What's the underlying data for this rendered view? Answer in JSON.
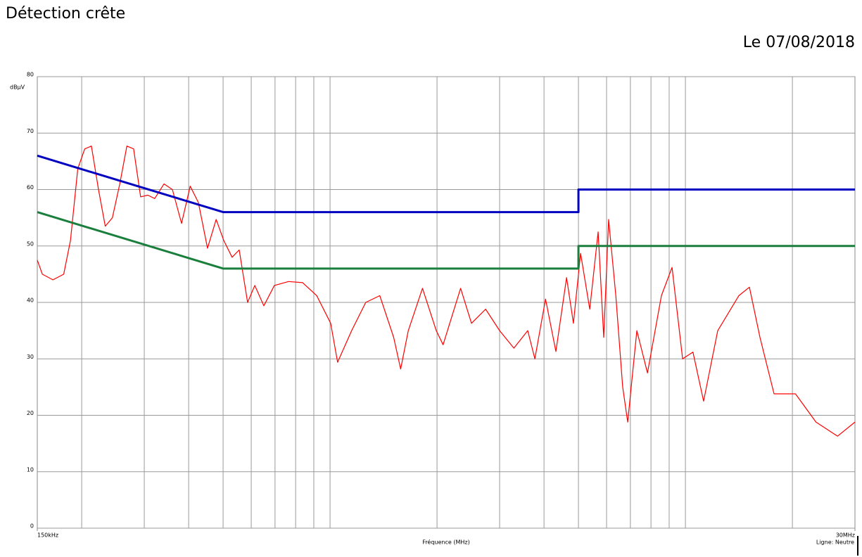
{
  "chart_data": {
    "type": "line",
    "title": "Détection crête",
    "date": "Le 07/08/2018",
    "ylabel": "dBµV",
    "xlabel": "Fréquence (MHz)",
    "note": "Ligne: Neutre",
    "xscale": "log",
    "xlim": [
      0.15,
      30
    ],
    "ylim": [
      0,
      80
    ],
    "xticks": [
      {
        "value": 0.15,
        "label": "150kHz"
      },
      {
        "value": 30,
        "label": "30MHz"
      }
    ],
    "xgrid": [
      0.2,
      0.3,
      0.4,
      0.5,
      0.6,
      0.7,
      0.8,
      0.9,
      1,
      2,
      3,
      4,
      5,
      6,
      7,
      8,
      9,
      10,
      20
    ],
    "yticks": [
      0,
      10,
      20,
      30,
      40,
      50,
      60,
      70,
      80
    ],
    "grid": true,
    "series": [
      {
        "color": "#ff0000",
        "width": 1.2,
        "x": [
          0.15,
          0.155,
          0.166,
          0.178,
          0.186,
          0.195,
          0.204,
          0.213,
          0.223,
          0.233,
          0.244,
          0.256,
          0.268,
          0.28,
          0.293,
          0.307,
          0.321,
          0.341,
          0.36,
          0.382,
          0.404,
          0.426,
          0.452,
          0.478,
          0.502,
          0.53,
          0.555,
          0.586,
          0.614,
          0.651,
          0.697,
          0.764,
          0.837,
          0.917,
          1.004,
          1.05,
          1.15,
          1.26,
          1.38,
          1.51,
          1.58,
          1.66,
          1.82,
          1.99,
          2.08,
          2.33,
          2.5,
          2.74,
          3.0,
          3.29,
          3.6,
          3.77,
          4.04,
          4.32,
          4.63,
          4.84,
          5.07,
          5.38,
          5.68,
          5.89,
          6.08,
          6.37,
          6.66,
          6.88,
          7.3,
          7.82,
          8.56,
          9.17,
          9.82,
          10.5,
          11.25,
          12.33,
          14.14,
          15.14,
          16.21,
          17.76,
          20.4,
          23.3,
          26.8,
          30
        ],
        "values": [
          47.5,
          45,
          44,
          45,
          51,
          63.7,
          67.2,
          67.7,
          60,
          53.5,
          55,
          61,
          67.7,
          67.2,
          58.7,
          59,
          58.4,
          61,
          60,
          54,
          60.6,
          57.7,
          49.6,
          54.7,
          51,
          48,
          49.3,
          40,
          43,
          39.4,
          43,
          43.7,
          43.5,
          41.2,
          36.3,
          29.4,
          35,
          40,
          41.2,
          33.8,
          28.2,
          35,
          42.5,
          35,
          32.5,
          42.5,
          36.3,
          38.8,
          35,
          31.9,
          35,
          30,
          40.6,
          31.3,
          44.4,
          36.3,
          48.7,
          38.8,
          52.5,
          33.8,
          54.7,
          41.2,
          25,
          18.8,
          35,
          27.5,
          41.2,
          46.2,
          30,
          31.2,
          22.5,
          35,
          41.2,
          42.7,
          33.8,
          23.8,
          23.8,
          18.8,
          16.3,
          18.8
        ]
      },
      {
        "color": "#0000c0",
        "width": 3,
        "x": [
          0.15,
          0.5,
          5,
          5,
          30
        ],
        "values": [
          66,
          56,
          56,
          60,
          60
        ]
      },
      {
        "color": "#1a7f3c",
        "width": 3,
        "x": [
          0.15,
          0.5,
          5,
          5,
          30
        ],
        "values": [
          56,
          46,
          46,
          50,
          50
        ]
      }
    ]
  }
}
